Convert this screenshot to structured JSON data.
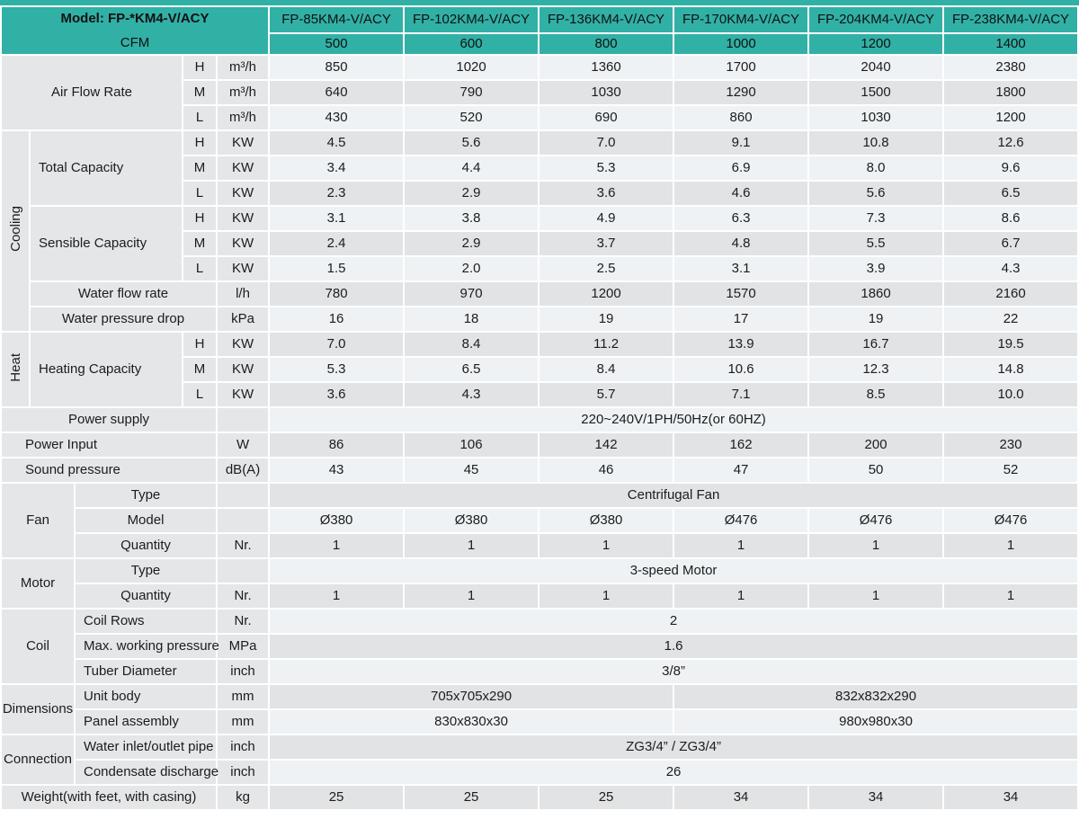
{
  "accent_color": "#31b0a6",
  "table": {
    "header": {
      "model_label": "Model: FP-*KM4-V/ACY",
      "cfm_label": "CFM",
      "models": [
        "FP-85KM4-V/ACY",
        "FP-102KM4-V/ACY",
        "FP-136KM4-V/ACY",
        "FP-170KM4-V/ACY",
        "FP-204KM4-V/ACY",
        "FP-238KM4-V/ACY"
      ],
      "cfm_values": [
        "500",
        "600",
        "800",
        "1000",
        "1200",
        "1400"
      ]
    },
    "rows": [
      {
        "cells": [
          {
            "t": "Air Flow Rate",
            "cs": 3,
            "rs": 3,
            "k": "c"
          },
          {
            "t": "H",
            "k": "c"
          },
          {
            "t": "m³/h",
            "k": "u"
          },
          {
            "t": "850",
            "k": "val"
          },
          {
            "t": "1020",
            "k": "val"
          },
          {
            "t": "1360",
            "k": "val"
          },
          {
            "t": "1700",
            "k": "val"
          },
          {
            "t": "2040",
            "k": "val"
          },
          {
            "t": "2380",
            "k": "val"
          }
        ]
      },
      {
        "cells": [
          {
            "t": "M",
            "k": "c"
          },
          {
            "t": "m³/h",
            "k": "u"
          },
          {
            "t": "640",
            "k": "val"
          },
          {
            "t": "790",
            "k": "val"
          },
          {
            "t": "1030",
            "k": "val"
          },
          {
            "t": "1290",
            "k": "val"
          },
          {
            "t": "1500",
            "k": "val"
          },
          {
            "t": "1800",
            "k": "val"
          }
        ]
      },
      {
        "cells": [
          {
            "t": "L",
            "k": "c"
          },
          {
            "t": "m³/h",
            "k": "u"
          },
          {
            "t": "430",
            "k": "val"
          },
          {
            "t": "520",
            "k": "val"
          },
          {
            "t": "690",
            "k": "val"
          },
          {
            "t": "860",
            "k": "val"
          },
          {
            "t": "1030",
            "k": "val"
          },
          {
            "t": "1200",
            "k": "val"
          }
        ]
      },
      {
        "cells": [
          {
            "t": "Cooling",
            "rs": 8,
            "k": "gv"
          },
          {
            "t": "Total Capacity",
            "cs": 2,
            "rs": 3,
            "k": "l"
          },
          {
            "t": "H",
            "k": "c"
          },
          {
            "t": "KW",
            "k": "u"
          },
          {
            "t": "4.5",
            "k": "val"
          },
          {
            "t": "5.6",
            "k": "val"
          },
          {
            "t": "7.0",
            "k": "val"
          },
          {
            "t": "9.1",
            "k": "val"
          },
          {
            "t": "10.8",
            "k": "val"
          },
          {
            "t": "12.6",
            "k": "val"
          }
        ]
      },
      {
        "cells": [
          {
            "t": "M",
            "k": "c"
          },
          {
            "t": "KW",
            "k": "u"
          },
          {
            "t": "3.4",
            "k": "val"
          },
          {
            "t": "4.4",
            "k": "val"
          },
          {
            "t": "5.3",
            "k": "val"
          },
          {
            "t": "6.9",
            "k": "val"
          },
          {
            "t": "8.0",
            "k": "val"
          },
          {
            "t": "9.6",
            "k": "val"
          }
        ]
      },
      {
        "cells": [
          {
            "t": "L",
            "k": "c"
          },
          {
            "t": "KW",
            "k": "u"
          },
          {
            "t": "2.3",
            "k": "val"
          },
          {
            "t": "2.9",
            "k": "val"
          },
          {
            "t": "3.6",
            "k": "val"
          },
          {
            "t": "4.6",
            "k": "val"
          },
          {
            "t": "5.6",
            "k": "val"
          },
          {
            "t": "6.5",
            "k": "val"
          }
        ]
      },
      {
        "cells": [
          {
            "t": "Sensible Capacity",
            "cs": 2,
            "rs": 3,
            "k": "l"
          },
          {
            "t": "H",
            "k": "c"
          },
          {
            "t": "KW",
            "k": "u"
          },
          {
            "t": "3.1",
            "k": "val"
          },
          {
            "t": "3.8",
            "k": "val"
          },
          {
            "t": "4.9",
            "k": "val"
          },
          {
            "t": "6.3",
            "k": "val"
          },
          {
            "t": "7.3",
            "k": "val"
          },
          {
            "t": "8.6",
            "k": "val"
          }
        ]
      },
      {
        "cells": [
          {
            "t": "M",
            "k": "c"
          },
          {
            "t": "KW",
            "k": "u"
          },
          {
            "t": "2.4",
            "k": "val"
          },
          {
            "t": "2.9",
            "k": "val"
          },
          {
            "t": "3.7",
            "k": "val"
          },
          {
            "t": "4.8",
            "k": "val"
          },
          {
            "t": "5.5",
            "k": "val"
          },
          {
            "t": "6.7",
            "k": "val"
          }
        ]
      },
      {
        "cells": [
          {
            "t": "L",
            "k": "c"
          },
          {
            "t": "KW",
            "k": "u"
          },
          {
            "t": "1.5",
            "k": "val"
          },
          {
            "t": "2.0",
            "k": "val"
          },
          {
            "t": "2.5",
            "k": "val"
          },
          {
            "t": "3.1",
            "k": "val"
          },
          {
            "t": "3.9",
            "k": "val"
          },
          {
            "t": "4.3",
            "k": "val"
          }
        ]
      },
      {
        "cells": [
          {
            "t": "Water flow rate",
            "cs": 3,
            "k": "c"
          },
          {
            "t": "l/h",
            "k": "u"
          },
          {
            "t": "780",
            "k": "val"
          },
          {
            "t": "970",
            "k": "val"
          },
          {
            "t": "1200",
            "k": "val"
          },
          {
            "t": "1570",
            "k": "val"
          },
          {
            "t": "1860",
            "k": "val"
          },
          {
            "t": "2160",
            "k": "val"
          }
        ]
      },
      {
        "cells": [
          {
            "t": "Water pressure drop",
            "cs": 3,
            "k": "c"
          },
          {
            "t": "kPa",
            "k": "u"
          },
          {
            "t": "16",
            "k": "val"
          },
          {
            "t": "18",
            "k": "val"
          },
          {
            "t": "19",
            "k": "val"
          },
          {
            "t": "17",
            "k": "val"
          },
          {
            "t": "19",
            "k": "val"
          },
          {
            "t": "22",
            "k": "val"
          }
        ]
      },
      {
        "cells": [
          {
            "t": "Heat",
            "rs": 3,
            "k": "gv"
          },
          {
            "t": "Heating Capacity",
            "cs": 2,
            "rs": 3,
            "k": "l"
          },
          {
            "t": "H",
            "k": "c"
          },
          {
            "t": "KW",
            "k": "u"
          },
          {
            "t": "7.0",
            "k": "val"
          },
          {
            "t": "8.4",
            "k": "val"
          },
          {
            "t": "11.2",
            "k": "val"
          },
          {
            "t": "13.9",
            "k": "val"
          },
          {
            "t": "16.7",
            "k": "val"
          },
          {
            "t": "19.5",
            "k": "val"
          }
        ]
      },
      {
        "cells": [
          {
            "t": "M",
            "k": "c"
          },
          {
            "t": "KW",
            "k": "u"
          },
          {
            "t": "5.3",
            "k": "val"
          },
          {
            "t": "6.5",
            "k": "val"
          },
          {
            "t": "8.4",
            "k": "val"
          },
          {
            "t": "10.6",
            "k": "val"
          },
          {
            "t": "12.3",
            "k": "val"
          },
          {
            "t": "14.8",
            "k": "val"
          }
        ]
      },
      {
        "cells": [
          {
            "t": "L",
            "k": "c"
          },
          {
            "t": "KW",
            "k": "u"
          },
          {
            "t": "3.6",
            "k": "val"
          },
          {
            "t": "4.3",
            "k": "val"
          },
          {
            "t": "5.7",
            "k": "val"
          },
          {
            "t": "7.1",
            "k": "val"
          },
          {
            "t": "8.5",
            "k": "val"
          },
          {
            "t": "10.0",
            "k": "val"
          }
        ]
      },
      {
        "cells": [
          {
            "t": "Power supply",
            "cs": 4,
            "k": "c"
          },
          {
            "t": "",
            "k": "u"
          },
          {
            "t": "220~240V/1PH/50Hz(or 60HZ)",
            "cs": 6,
            "k": "val"
          }
        ]
      },
      {
        "cells": [
          {
            "t": "Power Input",
            "cs": 4,
            "k": "l2"
          },
          {
            "t": "W",
            "k": "u"
          },
          {
            "t": "86",
            "k": "val"
          },
          {
            "t": "106",
            "k": "val"
          },
          {
            "t": "142",
            "k": "val"
          },
          {
            "t": "162",
            "k": "val"
          },
          {
            "t": "200",
            "k": "val"
          },
          {
            "t": "230",
            "k": "val"
          }
        ]
      },
      {
        "cells": [
          {
            "t": "Sound pressure",
            "cs": 4,
            "k": "l2"
          },
          {
            "t": "dB(A)",
            "k": "u"
          },
          {
            "t": "43",
            "k": "val"
          },
          {
            "t": "45",
            "k": "val"
          },
          {
            "t": "46",
            "k": "val"
          },
          {
            "t": "47",
            "k": "val"
          },
          {
            "t": "50",
            "k": "val"
          },
          {
            "t": "52",
            "k": "val"
          }
        ]
      },
      {
        "cells": [
          {
            "t": "Fan",
            "cs": 2,
            "rs": 3,
            "k": "gh"
          },
          {
            "t": "Type",
            "cs": 2,
            "k": "c"
          },
          {
            "t": "",
            "k": "u"
          },
          {
            "t": "Centrifugal Fan",
            "cs": 6,
            "k": "val"
          }
        ]
      },
      {
        "cells": [
          {
            "t": "Model",
            "cs": 2,
            "k": "c"
          },
          {
            "t": "",
            "k": "u"
          },
          {
            "t": "Ø380",
            "k": "val"
          },
          {
            "t": "Ø380",
            "k": "val"
          },
          {
            "t": "Ø380",
            "k": "val"
          },
          {
            "t": "Ø476",
            "k": "val"
          },
          {
            "t": "Ø476",
            "k": "val"
          },
          {
            "t": "Ø476",
            "k": "val"
          }
        ]
      },
      {
        "cells": [
          {
            "t": "Quantity",
            "cs": 2,
            "k": "c"
          },
          {
            "t": "Nr.",
            "k": "u"
          },
          {
            "t": "1",
            "k": "val"
          },
          {
            "t": "1",
            "k": "val"
          },
          {
            "t": "1",
            "k": "val"
          },
          {
            "t": "1",
            "k": "val"
          },
          {
            "t": "1",
            "k": "val"
          },
          {
            "t": "1",
            "k": "val"
          }
        ]
      },
      {
        "cells": [
          {
            "t": "Motor",
            "cs": 2,
            "rs": 2,
            "k": "gh"
          },
          {
            "t": "Type",
            "cs": 2,
            "k": "c"
          },
          {
            "t": "",
            "k": "u"
          },
          {
            "t": "3-speed Motor",
            "cs": 6,
            "k": "val"
          }
        ]
      },
      {
        "cells": [
          {
            "t": "Quantity",
            "cs": 2,
            "k": "c"
          },
          {
            "t": "Nr.",
            "k": "u"
          },
          {
            "t": "1",
            "k": "val"
          },
          {
            "t": "1",
            "k": "val"
          },
          {
            "t": "1",
            "k": "val"
          },
          {
            "t": "1",
            "k": "val"
          },
          {
            "t": "1",
            "k": "val"
          },
          {
            "t": "1",
            "k": "val"
          }
        ]
      },
      {
        "cells": [
          {
            "t": "Coil",
            "cs": 2,
            "rs": 3,
            "k": "gh"
          },
          {
            "t": "Coil Rows",
            "cs": 2,
            "k": "l"
          },
          {
            "t": "Nr.",
            "k": "u"
          },
          {
            "t": "2",
            "cs": 6,
            "k": "val"
          }
        ]
      },
      {
        "cells": [
          {
            "t": "Max. working pressure",
            "cs": 2,
            "k": "l"
          },
          {
            "t": "MPa",
            "k": "u"
          },
          {
            "t": "1.6",
            "cs": 6,
            "k": "val"
          }
        ]
      },
      {
        "cells": [
          {
            "t": "Tuber Diameter",
            "cs": 2,
            "k": "l"
          },
          {
            "t": "inch",
            "k": "u"
          },
          {
            "t": "3/8”",
            "cs": 6,
            "k": "val"
          }
        ]
      },
      {
        "cells": [
          {
            "t": "Dimensions",
            "cs": 2,
            "rs": 2,
            "k": "gh"
          },
          {
            "t": "Unit body",
            "cs": 2,
            "k": "l"
          },
          {
            "t": "mm",
            "k": "u"
          },
          {
            "t": "705x705x290",
            "cs": 3,
            "k": "val"
          },
          {
            "t": "832x832x290",
            "cs": 3,
            "k": "val"
          }
        ]
      },
      {
        "cells": [
          {
            "t": "Panel assembly",
            "cs": 2,
            "k": "l"
          },
          {
            "t": "mm",
            "k": "u"
          },
          {
            "t": "830x830x30",
            "cs": 3,
            "k": "val"
          },
          {
            "t": "980x980x30",
            "cs": 3,
            "k": "val"
          }
        ]
      },
      {
        "cells": [
          {
            "t": "Connection",
            "cs": 2,
            "rs": 2,
            "k": "gh"
          },
          {
            "t": "Water inlet/outlet pipe",
            "cs": 2,
            "k": "l"
          },
          {
            "t": "inch",
            "k": "u"
          },
          {
            "t": "ZG3/4” / ZG3/4”",
            "cs": 6,
            "k": "val"
          }
        ]
      },
      {
        "cells": [
          {
            "t": "Condensate discharge",
            "cs": 2,
            "k": "l"
          },
          {
            "t": "inch",
            "k": "u"
          },
          {
            "t": "26",
            "cs": 6,
            "k": "val"
          }
        ]
      },
      {
        "cells": [
          {
            "t": "Weight(with feet, with casing)",
            "cs": 4,
            "k": "c"
          },
          {
            "t": "kg",
            "k": "u"
          },
          {
            "t": "25",
            "k": "val"
          },
          {
            "t": "25",
            "k": "val"
          },
          {
            "t": "25",
            "k": "val"
          },
          {
            "t": "34",
            "k": "val"
          },
          {
            "t": "34",
            "k": "val"
          },
          {
            "t": "34",
            "k": "val"
          }
        ]
      }
    ]
  }
}
